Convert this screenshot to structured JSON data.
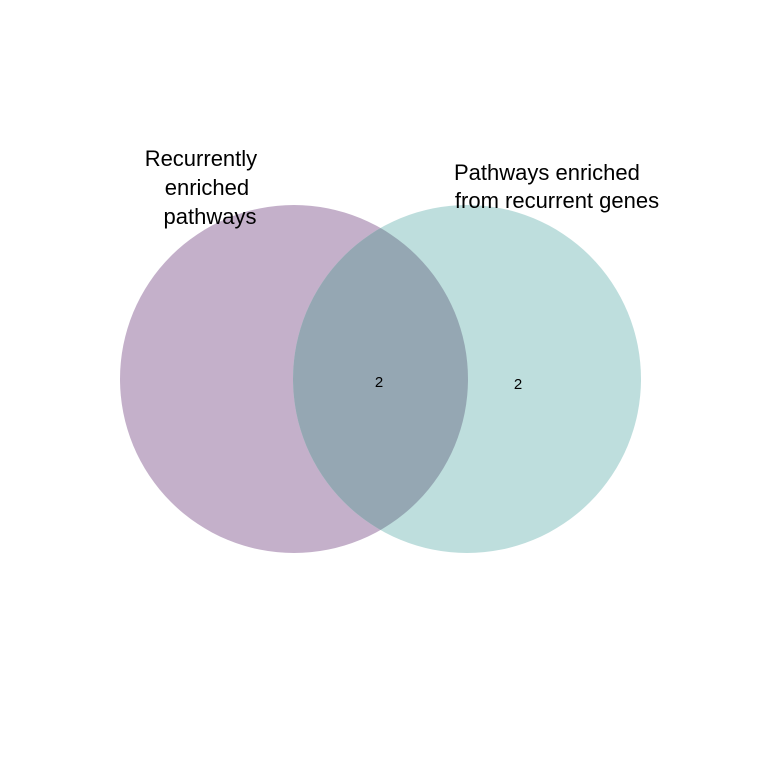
{
  "venn": {
    "sets": [
      {
        "label_lines": [
          "Recurrently",
          "enriched",
          "pathways"
        ],
        "color": "#A67FA8"
      },
      {
        "label_lines": [
          "Pathways enriched",
          "from recurrent genes"
        ],
        "color": "#96CACA"
      }
    ],
    "counts": {
      "intersection": "2",
      "right_only": "2"
    },
    "overlap_color": "#95A7B3"
  }
}
